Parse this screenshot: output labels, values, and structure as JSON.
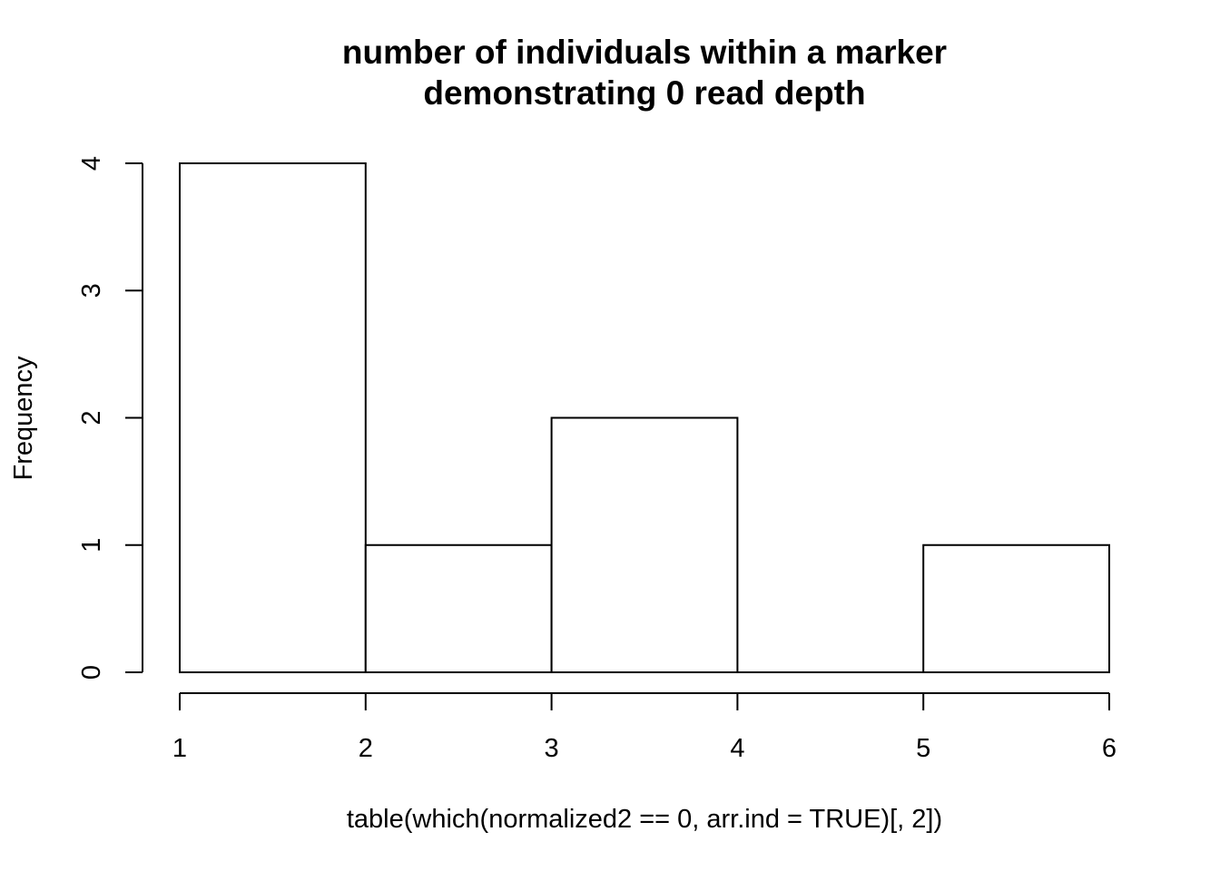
{
  "chart_data": {
    "type": "bar",
    "subtype": "histogram",
    "title_lines": [
      "number of individuals within a marker",
      "demonstrating 0 read depth"
    ],
    "xlabel": "table(which(normalized2 == 0, arr.ind = TRUE)[, 2])",
    "ylabel": "Frequency",
    "bins": [
      {
        "start": 1,
        "end": 2,
        "count": 4
      },
      {
        "start": 2,
        "end": 3,
        "count": 1
      },
      {
        "start": 3,
        "end": 4,
        "count": 2
      },
      {
        "start": 4,
        "end": 5,
        "count": 0
      },
      {
        "start": 5,
        "end": 6,
        "count": 1
      }
    ],
    "xlim": [
      1,
      6
    ],
    "ylim": [
      0,
      4
    ],
    "x_ticks": [
      "1",
      "2",
      "3",
      "4",
      "5",
      "6"
    ],
    "y_ticks": [
      "0",
      "1",
      "2",
      "3",
      "4"
    ],
    "grid": false,
    "legend": "none",
    "colors": {
      "bar_fill": "#ffffff",
      "bar_stroke": "#000000",
      "axis": "#000000"
    }
  }
}
